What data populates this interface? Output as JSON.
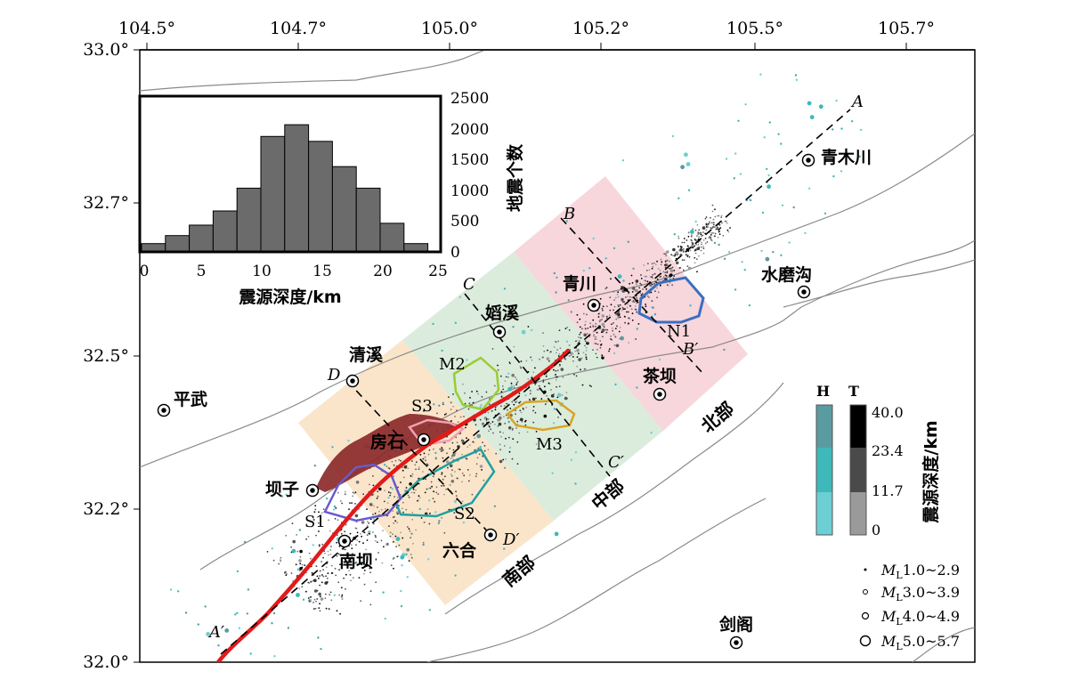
{
  "map": {
    "lon_ticks": [
      "104.5°",
      "104.7°",
      "105.0°",
      "105.2°",
      "105.5°",
      "105.7°"
    ],
    "lat_ticks": [
      "33.0°",
      "32.7°",
      "32.5°",
      "32.2°",
      "32.0°"
    ]
  },
  "places": {
    "qingmuchuan": "青木川",
    "shuimogou": "水磨沟",
    "qingchuan": "青川",
    "shixi": "嫍溪",
    "qingxi": "清溪",
    "pingwu": "平武",
    "fangshi": "房石",
    "bazi": "坝子",
    "nanba": "南坝",
    "liuhe": "六合",
    "chaba": "茶坝",
    "jiange": "剑阁"
  },
  "zones": {
    "north": "北部",
    "middle": "中部",
    "south": "南部"
  },
  "profiles": {
    "A": "A",
    "A_prime": "A′",
    "B": "B",
    "B_prime": "B′",
    "C": "C",
    "C_prime": "C′",
    "D": "D",
    "D_prime": "D′"
  },
  "clusters": {
    "N1": "N1",
    "M2": "M2",
    "M3": "M3",
    "S1": "S1",
    "S2": "S2",
    "S3": "S3"
  },
  "histogram": {
    "xlabel": "震源深度/km",
    "ylabel": "地震个数",
    "x_ticks": [
      "0",
      "5",
      "10",
      "15",
      "20",
      "25"
    ],
    "y_ticks": [
      "0",
      "500",
      "1000",
      "1500",
      "2000",
      "2500"
    ]
  },
  "chart_data": {
    "type": "bar",
    "title": "",
    "xlabel": "震源深度/km",
    "ylabel": "地震个数",
    "bin_edges": [
      0,
      2,
      4,
      6,
      8,
      10,
      12,
      14,
      16,
      18,
      20,
      22,
      24
    ],
    "values": [
      120,
      250,
      420,
      650,
      1020,
      1860,
      2050,
      1780,
      1370,
      1020,
      450,
      120
    ],
    "xlim": [
      0,
      25
    ],
    "ylim": [
      0,
      2500
    ]
  },
  "depth_scale": {
    "header_H": "H",
    "header_T": "T",
    "ticks": [
      "40.0",
      "23.4",
      "11.7",
      "0"
    ],
    "label": "震源深度/km",
    "colors_H": [
      "#5a9ba0",
      "#3fb8ba",
      "#6ccfd4"
    ],
    "colors_T": [
      "#000000",
      "#4a4a4a",
      "#9a9a9a"
    ]
  },
  "magnitude_legend": {
    "prefix": "M",
    "subscript": "L",
    "ranges": [
      "1.0~2.9",
      "3.0~3.9",
      "4.0~4.9",
      "5.0~5.7"
    ]
  }
}
